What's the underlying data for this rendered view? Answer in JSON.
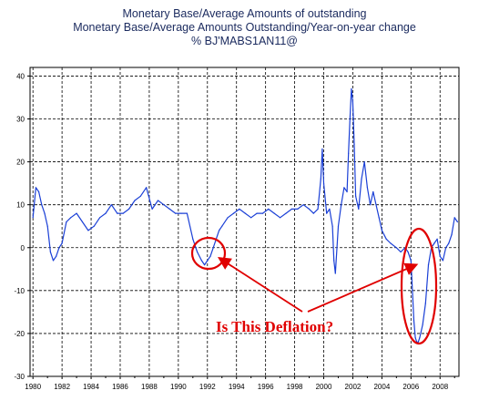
{
  "titles": {
    "line1": "Monetary Base/Average Amounts of outstanding",
    "line2": "Monetary Base/Average Amounts Outstanding/Year-on-year change",
    "line3": "% BJ'MABS1AN11@"
  },
  "chart_data": {
    "type": "line",
    "title": "Monetary Base/Average Amounts Outstanding/Year-on-year change",
    "xlabel": "",
    "ylabel": "",
    "xlim": [
      1979.8,
      2009.3
    ],
    "ylim": [
      -30,
      42
    ],
    "grid": true,
    "x_ticks": [
      1980,
      1982,
      1984,
      1986,
      1988,
      1990,
      1992,
      1994,
      1996,
      1998,
      2000,
      2002,
      2004,
      2006,
      2008
    ],
    "y_ticks": [
      -30,
      -20,
      -10,
      0,
      10,
      20,
      30,
      40
    ],
    "series": [
      {
        "color": "#1a3fd6",
        "x": [
          1980.0,
          1980.2,
          1980.4,
          1980.6,
          1980.8,
          1981.0,
          1981.2,
          1981.4,
          1981.6,
          1981.8,
          1982.0,
          1982.3,
          1982.6,
          1983.0,
          1983.4,
          1983.8,
          1984.2,
          1984.6,
          1985.0,
          1985.4,
          1985.8,
          1986.2,
          1986.6,
          1987.0,
          1987.4,
          1987.8,
          1988.2,
          1988.6,
          1989.0,
          1989.4,
          1989.8,
          1990.2,
          1990.6,
          1991.0,
          1991.3,
          1991.6,
          1991.8,
          1992.0,
          1992.2,
          1992.4,
          1992.6,
          1992.8,
          1993.0,
          1993.4,
          1993.8,
          1994.2,
          1994.6,
          1995.0,
          1995.4,
          1995.8,
          1996.2,
          1996.6,
          1997.0,
          1997.4,
          1997.8,
          1998.2,
          1998.6,
          1999.0,
          1999.3,
          1999.6,
          1999.8,
          1999.9,
          2000.0,
          2000.2,
          2000.4,
          2000.6,
          2000.7,
          2000.8,
          2001.0,
          2001.2,
          2001.4,
          2001.6,
          2001.7,
          2001.8,
          2001.9,
          2002.0,
          2002.1,
          2002.2,
          2002.4,
          2002.6,
          2002.8,
          2003.0,
          2003.2,
          2003.4,
          2003.6,
          2003.8,
          2004.0,
          2004.3,
          2004.6,
          2005.0,
          2005.3,
          2005.6,
          2005.8,
          2006.0,
          2006.1,
          2006.2,
          2006.3,
          2006.4,
          2006.5,
          2006.6,
          2006.8,
          2007.0,
          2007.2,
          2007.4,
          2007.6,
          2007.8,
          2008.0,
          2008.2,
          2008.4,
          2008.6,
          2008.8,
          2009.0,
          2009.2
        ],
        "y": [
          7,
          14,
          13,
          10,
          8,
          5,
          -1,
          -3,
          -2,
          0,
          1,
          6,
          7,
          8,
          6,
          4,
          5,
          7,
          8,
          10,
          8,
          8,
          9,
          11,
          12,
          14,
          9,
          11,
          10,
          9,
          8,
          8,
          8,
          2,
          -1,
          -3,
          -4,
          -3,
          -2,
          0,
          2,
          4,
          5,
          7,
          8,
          9,
          8,
          7,
          8,
          8,
          9,
          8,
          7,
          8,
          9,
          9,
          10,
          9,
          8,
          9,
          16,
          23,
          15,
          8,
          9,
          5,
          -3,
          -6,
          5,
          10,
          14,
          13,
          22,
          30,
          37,
          34,
          24,
          12,
          9,
          16,
          20,
          14,
          10,
          13,
          10,
          7,
          4,
          2,
          1,
          0,
          -1,
          0,
          -1,
          -3,
          -10,
          -17,
          -21,
          -22,
          -22,
          -21,
          -18,
          -13,
          -4,
          0,
          1,
          2,
          -2,
          -3,
          0,
          1,
          3,
          7,
          6
        ]
      }
    ],
    "annotations": [
      {
        "text": "Is This Deflation?",
        "color": "#e00000"
      }
    ]
  }
}
